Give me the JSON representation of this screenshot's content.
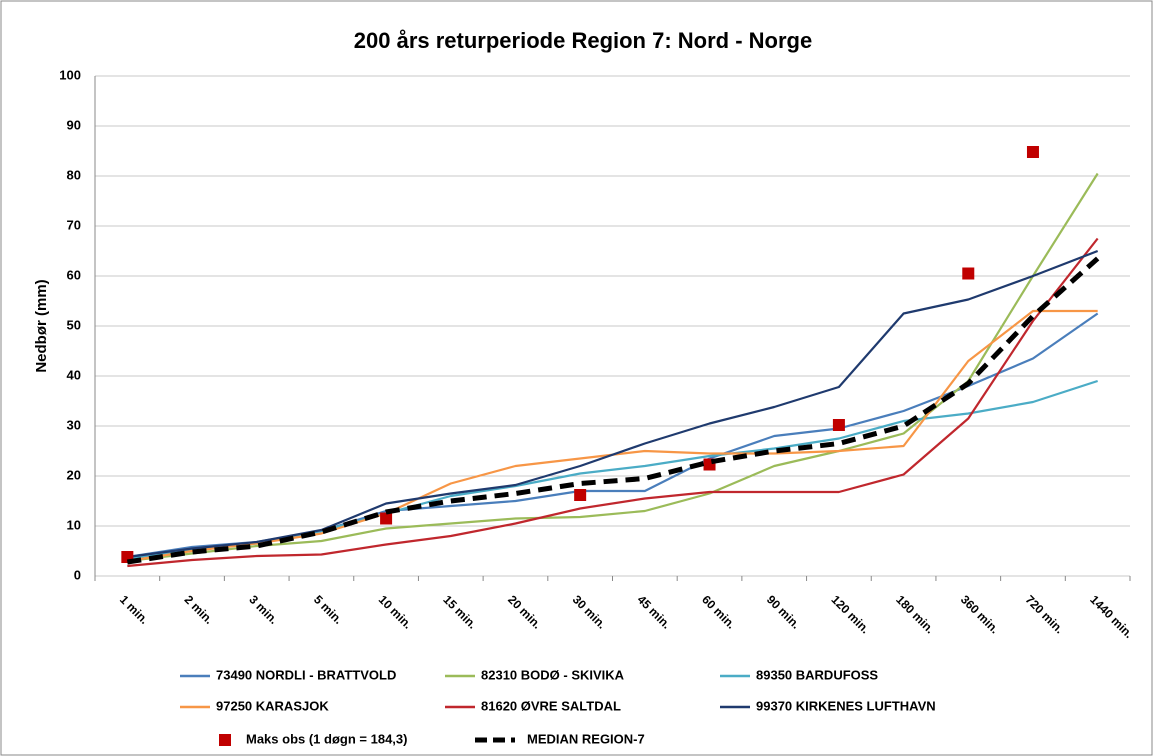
{
  "chart_data": {
    "type": "line",
    "title": "200 års returperiode Region 7:  Nord - Norge",
    "y_label": "Nedbør (mm)",
    "categories": [
      "1 min.",
      "2 min.",
      "3 min.",
      "5 min.",
      "10 min.",
      "15 min.",
      "20 min.",
      "30 min.",
      "45 min.",
      "60 min.",
      "90 min.",
      "120 min.",
      "180 min.",
      "360 min.",
      "720 min.",
      "1440 min."
    ],
    "ylim": [
      0,
      100
    ],
    "yticks": [
      0,
      10,
      20,
      30,
      40,
      50,
      60,
      70,
      80,
      90,
      100
    ],
    "grid": true,
    "legend": "bottom",
    "series": [
      {
        "name": "73490 NORDLI - BRATTVOLD",
        "color": "#4a7ebb",
        "style": "solid",
        "values": [
          3.8,
          5.8,
          6.8,
          9,
          13,
          14,
          15,
          17,
          17,
          23.5,
          28,
          29.5,
          33,
          38,
          43.5,
          52.5
        ]
      },
      {
        "name": "82310 BODØ - SKIVIKA",
        "color": "#9bbb59",
        "style": "solid",
        "values": [
          3,
          4.5,
          6,
          7,
          9.5,
          10.5,
          11.5,
          11.8,
          13,
          16.5,
          22,
          25,
          28.5,
          39,
          60,
          80.5
        ]
      },
      {
        "name": "89350 BARDUFOSS",
        "color": "#4bacc6",
        "style": "solid",
        "values": [
          3.5,
          5.2,
          6.5,
          9,
          12.5,
          16,
          18,
          20.5,
          22,
          24,
          25.5,
          27.5,
          31,
          32.5,
          34.8,
          39
        ]
      },
      {
        "name": "97250 KARASJOK",
        "color": "#f79646",
        "style": "solid",
        "values": [
          3,
          5,
          6.5,
          8.5,
          12.5,
          18.5,
          22,
          23.5,
          25,
          24.5,
          24.5,
          25,
          26,
          43,
          53,
          53
        ]
      },
      {
        "name": "81620 ØVRE SALTDAL",
        "color": "#c0272d",
        "style": "solid",
        "values": [
          2,
          3.2,
          4,
          4.3,
          6.3,
          8,
          10.5,
          13.5,
          15.5,
          16.8,
          16.8,
          16.8,
          20.3,
          31.5,
          51,
          67.5
        ]
      },
      {
        "name": "99370 KIRKENES LUFTHAVN",
        "color": "#1f3a6e",
        "style": "solid",
        "values": [
          3.8,
          5.5,
          6.8,
          9.2,
          14.5,
          16.5,
          18.2,
          22,
          26.5,
          30.5,
          33.8,
          37.8,
          52.5,
          55.3,
          60,
          65
        ]
      },
      {
        "name": "Maks obs (1 døgn = 184,3)",
        "color": "#c00000",
        "style": "marker",
        "values": [
          3.8,
          null,
          null,
          null,
          11.5,
          null,
          null,
          16.2,
          null,
          22.3,
          null,
          30.2,
          null,
          60.5,
          84.8,
          null
        ]
      },
      {
        "name": "MEDIAN REGION-7",
        "color": "#000000",
        "style": "dashed",
        "values": [
          2.8,
          4.8,
          6,
          8.8,
          12.8,
          15,
          16.5,
          18.5,
          19.5,
          22.8,
          25,
          26.5,
          30,
          38.5,
          52,
          63.5
        ]
      }
    ]
  }
}
